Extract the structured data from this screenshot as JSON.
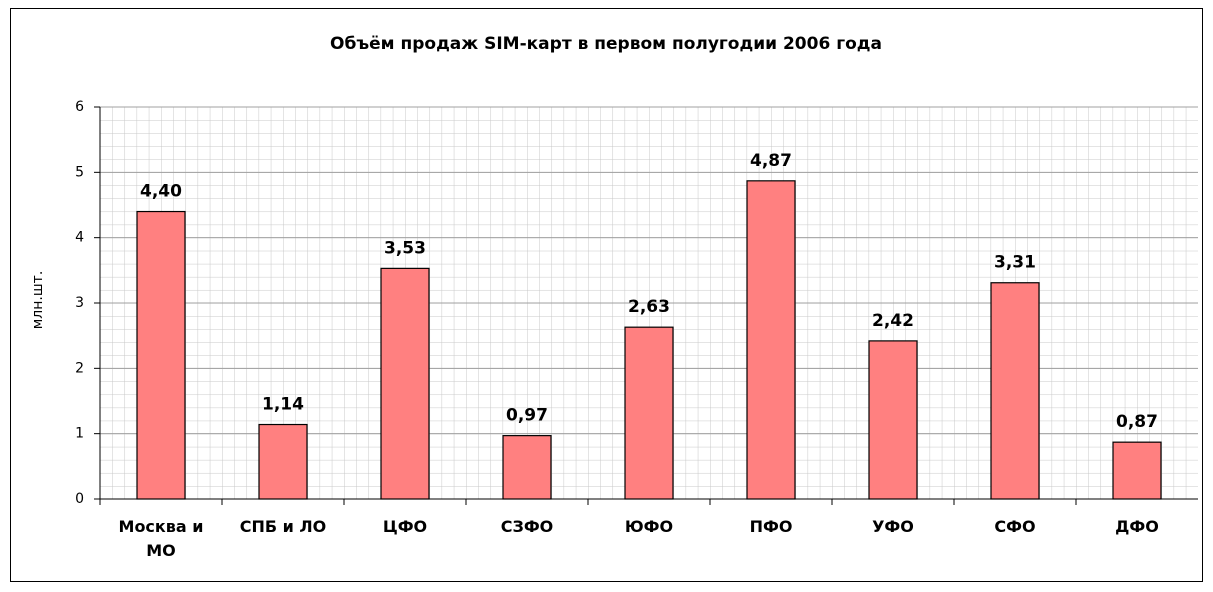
{
  "chart_data": {
    "type": "bar",
    "title": "Объём продаж SIM-карт в первом полугодии 2006 года",
    "y_label": "млн.шт.",
    "categories": [
      "Москва и МО",
      "СПБ и ЛО",
      "ЦФО",
      "СЗФО",
      "ЮФО",
      "ПФО",
      "УФО",
      "СФО",
      "ДФО"
    ],
    "values": [
      4.4,
      1.14,
      3.53,
      0.97,
      2.63,
      4.87,
      2.42,
      3.31,
      0.87
    ],
    "value_labels": [
      "4,40",
      "1,14",
      "3,53",
      "0,97",
      "2,63",
      "4,87",
      "2,42",
      "3,31",
      "0,87"
    ],
    "color": "#ff8080",
    "ylim": [
      0,
      6
    ],
    "yticks": [
      0,
      1,
      2,
      3,
      4,
      5,
      6
    ],
    "grid": true
  }
}
